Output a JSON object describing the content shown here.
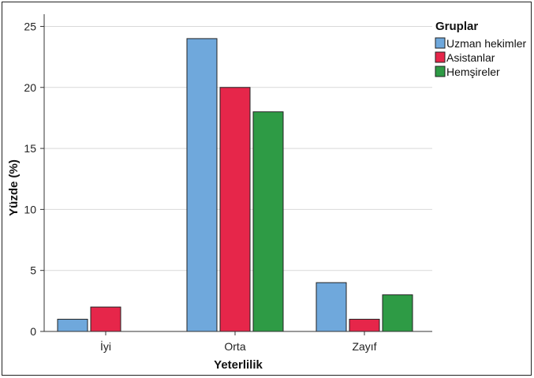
{
  "chart_data": {
    "type": "bar",
    "xlabel": "Yeterlilik",
    "ylabel": "Yüzde (%)",
    "categories": [
      "İyi",
      "Orta",
      "Zayıf"
    ],
    "ylim": [
      0,
      26
    ],
    "yticks": [
      0,
      5,
      10,
      15,
      20,
      25
    ],
    "grid": true,
    "legend": {
      "title": "Gruplar",
      "placement": "top-right"
    },
    "series": [
      {
        "name": "Uzman hekimler",
        "color": "#6fa8dc",
        "values": [
          1,
          24,
          4
        ]
      },
      {
        "name": "Asistanlar",
        "color": "#e6264a",
        "values": [
          2,
          20,
          1
        ]
      },
      {
        "name": "Hemşireler",
        "color": "#2e9b45",
        "values": [
          null,
          18,
          3
        ]
      }
    ]
  }
}
